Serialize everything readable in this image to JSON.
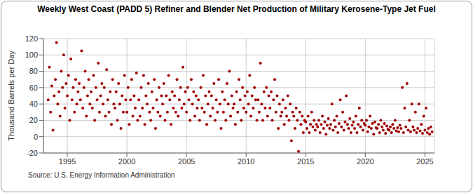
{
  "chart_data": {
    "type": "scatter",
    "title": "Weekly West Coast (PADD 5)  Refiner and Blender Net Production of Military Kerosene-Type Jet Fuel",
    "y_label": "Thousand Barrels per Day",
    "source": "Source: U.S. Energy Information Administration",
    "color": "#a00000",
    "marker": "circle",
    "grid": true,
    "xlim": [
      1993,
      2025.8
    ],
    "xticks": [
      1995,
      2000,
      2005,
      2010,
      2015,
      2020,
      2025
    ],
    "ylim": [
      -20,
      120
    ],
    "yticks": [
      -20,
      0,
      20,
      40,
      60,
      80,
      100,
      120
    ],
    "x": [
      1993.4,
      1993.5,
      1993.6,
      1993.7,
      1993.8,
      1993.9,
      1994.0,
      1994.1,
      1994.2,
      1994.3,
      1994.4,
      1994.5,
      1994.6,
      1994.7,
      1994.8,
      1994.9,
      1995.0,
      1995.1,
      1995.2,
      1995.3,
      1995.4,
      1995.5,
      1995.6,
      1995.7,
      1995.8,
      1995.9,
      1996.0,
      1996.1,
      1996.2,
      1996.3,
      1996.4,
      1996.5,
      1996.6,
      1996.7,
      1996.8,
      1996.9,
      1997.0,
      1997.1,
      1997.2,
      1997.3,
      1997.4,
      1997.5,
      1997.6,
      1997.7,
      1997.8,
      1997.9,
      1998.0,
      1998.1,
      1998.2,
      1998.3,
      1998.4,
      1998.5,
      1998.6,
      1998.7,
      1998.8,
      1998.9,
      1999.0,
      1999.1,
      1999.2,
      1999.3,
      1999.4,
      1999.5,
      1999.6,
      1999.7,
      1999.8,
      1999.9,
      2000.0,
      2000.1,
      2000.2,
      2000.3,
      2000.4,
      2000.5,
      2000.6,
      2000.7,
      2000.8,
      2000.9,
      2001.0,
      2001.1,
      2001.2,
      2001.3,
      2001.4,
      2001.5,
      2001.6,
      2001.7,
      2001.8,
      2001.9,
      2002.0,
      2002.1,
      2002.2,
      2002.3,
      2002.4,
      2002.5,
      2002.6,
      2002.7,
      2002.8,
      2002.9,
      2003.0,
      2003.1,
      2003.2,
      2003.3,
      2003.4,
      2003.5,
      2003.6,
      2003.7,
      2003.8,
      2003.9,
      2004.0,
      2004.1,
      2004.2,
      2004.3,
      2004.4,
      2004.5,
      2004.6,
      2004.7,
      2004.8,
      2004.9,
      2005.0,
      2005.1,
      2005.2,
      2005.3,
      2005.4,
      2005.5,
      2005.6,
      2005.7,
      2005.8,
      2005.9,
      2006.0,
      2006.1,
      2006.2,
      2006.3,
      2006.4,
      2006.5,
      2006.6,
      2006.7,
      2006.8,
      2006.9,
      2007.0,
      2007.1,
      2007.2,
      2007.3,
      2007.4,
      2007.5,
      2007.6,
      2007.7,
      2007.8,
      2007.9,
      2008.0,
      2008.1,
      2008.2,
      2008.3,
      2008.4,
      2008.5,
      2008.6,
      2008.7,
      2008.8,
      2008.9,
      2009.0,
      2009.1,
      2009.2,
      2009.3,
      2009.4,
      2009.5,
      2009.6,
      2009.7,
      2009.8,
      2009.9,
      2010.0,
      2010.1,
      2010.2,
      2010.3,
      2010.4,
      2010.5,
      2010.6,
      2010.7,
      2010.8,
      2010.9,
      2011.0,
      2011.1,
      2011.2,
      2011.3,
      2011.4,
      2011.5,
      2011.6,
      2011.7,
      2011.8,
      2011.9,
      2012.0,
      2012.1,
      2012.2,
      2012.3,
      2012.4,
      2012.5,
      2012.6,
      2012.7,
      2012.8,
      2012.9,
      2013.0,
      2013.1,
      2013.2,
      2013.3,
      2013.4,
      2013.5,
      2013.6,
      2013.7,
      2013.8,
      2013.9,
      2014.0,
      2014.1,
      2014.2,
      2014.3,
      2014.4,
      2014.5,
      2014.6,
      2014.7,
      2014.8,
      2014.9,
      2015.0,
      2015.1,
      2015.2,
      2015.3,
      2015.4,
      2015.5,
      2015.6,
      2015.7,
      2015.8,
      2015.9,
      2016.0,
      2016.1,
      2016.2,
      2016.3,
      2016.4,
      2016.5,
      2016.6,
      2016.7,
      2016.8,
      2016.9,
      2017.0,
      2017.1,
      2017.2,
      2017.3,
      2017.4,
      2017.5,
      2017.6,
      2017.7,
      2017.8,
      2017.9,
      2018.0,
      2018.1,
      2018.2,
      2018.3,
      2018.4,
      2018.5,
      2018.6,
      2018.7,
      2018.8,
      2018.9,
      2019.0,
      2019.1,
      2019.2,
      2019.3,
      2019.4,
      2019.5,
      2019.6,
      2019.7,
      2019.8,
      2019.9,
      2020.0,
      2020.1,
      2020.2,
      2020.3,
      2020.4,
      2020.5,
      2020.6,
      2020.7,
      2020.8,
      2020.9,
      2021.0,
      2021.1,
      2021.2,
      2021.3,
      2021.4,
      2021.5,
      2021.6,
      2021.7,
      2021.8,
      2021.9,
      2022.0,
      2022.1,
      2022.2,
      2022.3,
      2022.4,
      2022.5,
      2022.6,
      2022.7,
      2022.8,
      2022.9,
      2023.0,
      2023.1,
      2023.2,
      2023.3,
      2023.4,
      2023.5,
      2023.6,
      2023.7,
      2023.8,
      2023.9,
      2024.0,
      2024.1,
      2024.2,
      2024.3,
      2024.4,
      2024.5,
      2024.6,
      2024.7,
      2024.8,
      2024.9,
      2025.0,
      2025.1,
      2025.2,
      2025.3,
      2025.4,
      2025.5,
      2025.6
    ],
    "values": [
      45,
      85,
      30,
      62,
      8,
      50,
      70,
      115,
      40,
      55,
      25,
      80,
      60,
      100,
      35,
      65,
      50,
      75,
      20,
      95,
      45,
      60,
      30,
      70,
      40,
      55,
      65,
      45,
      105,
      35,
      60,
      80,
      25,
      50,
      70,
      40,
      55,
      35,
      75,
      20,
      60,
      45,
      90,
      30,
      50,
      65,
      40,
      60,
      25,
      82,
      45,
      30,
      55,
      15,
      70,
      40,
      35,
      55,
      20,
      65,
      40,
      10,
      50,
      30,
      75,
      45,
      30,
      60,
      15,
      45,
      70,
      25,
      50,
      35,
      78,
      20,
      45,
      25,
      60,
      35,
      75,
      15,
      50,
      40,
      65,
      30,
      20,
      55,
      35,
      70,
      10,
      45,
      30,
      60,
      25,
      50,
      40,
      65,
      20,
      50,
      30,
      75,
      45,
      15,
      55,
      35,
      50,
      30,
      70,
      25,
      45,
      60,
      35,
      85,
      40,
      55,
      30,
      60,
      45,
      20,
      70,
      40,
      55,
      25,
      50,
      35,
      45,
      20,
      60,
      35,
      75,
      30,
      50,
      15,
      40,
      55,
      25,
      50,
      35,
      65,
      20,
      45,
      30,
      70,
      40,
      10,
      55,
      30,
      45,
      20,
      65,
      40,
      80,
      25,
      50,
      35,
      40,
      15,
      55,
      30,
      70,
      45,
      20,
      60,
      35,
      50,
      30,
      55,
      40,
      75,
      25,
      50,
      35,
      60,
      45,
      20,
      45,
      30,
      90,
      40,
      20,
      55,
      35,
      60,
      25,
      50,
      35,
      55,
      20,
      45,
      70,
      30,
      50,
      10,
      40,
      25,
      30,
      45,
      15,
      35,
      25,
      50,
      20,
      40,
      -5,
      30,
      25,
      10,
      35,
      20,
      -18,
      30,
      15,
      25,
      5,
      20,
      18,
      10,
      25,
      5,
      15,
      30,
      12,
      20,
      8,
      15,
      12,
      20,
      5,
      15,
      25,
      10,
      18,
      3,
      14,
      22,
      10,
      15,
      40,
      8,
      20,
      12,
      25,
      5,
      16,
      45,
      12,
      30,
      8,
      18,
      50,
      15,
      10,
      22,
      5,
      14,
      18,
      10,
      25,
      5,
      15,
      35,
      12,
      20,
      8,
      16,
      14,
      20,
      6,
      12,
      25,
      10,
      16,
      3,
      18,
      11,
      10,
      15,
      5,
      20,
      12,
      8,
      16,
      4,
      13,
      9,
      8,
      12,
      5,
      15,
      10,
      20,
      7,
      11,
      6,
      14,
      10,
      60,
      5,
      35,
      12,
      65,
      8,
      20,
      6,
      40,
      12,
      8,
      30,
      5,
      10,
      40,
      7,
      15,
      4,
      25,
      8,
      35,
      5,
      10,
      3,
      12,
      6
    ]
  }
}
